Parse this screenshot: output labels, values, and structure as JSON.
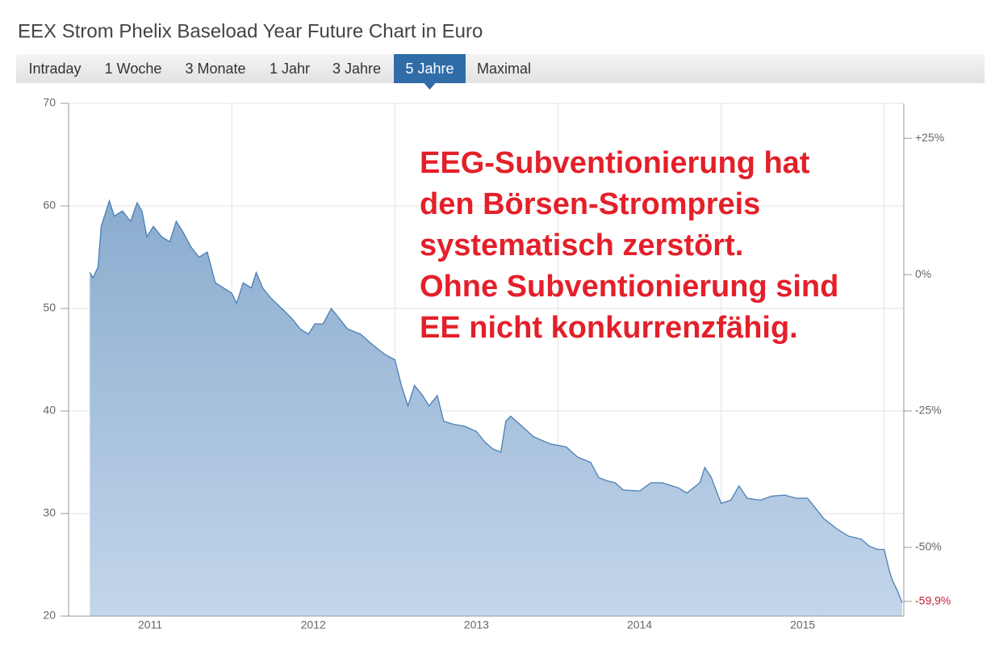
{
  "chart_data": {
    "type": "area",
    "title": "EEX Strom Phelix Baseload Year Future Chart in Euro",
    "tabs": [
      "Intraday",
      "1 Woche",
      "3 Monate",
      "1 Jahr",
      "3 Jahre",
      "5 Jahre",
      "Maximal"
    ],
    "active_tab": 5,
    "annotation": [
      "EEG-Subventionierung hat",
      "den Börsen-Strompreis",
      "systematisch zerstört.",
      "Ohne Subventionierung sind",
      "EE nicht konkurrenzfähig."
    ],
    "color": "#4a7fb5",
    "x": [
      2010.63,
      2010.65,
      2010.68,
      2010.7,
      2010.73,
      2010.75,
      2010.78,
      2010.83,
      2010.88,
      2010.92,
      2010.95,
      2010.98,
      2011.02,
      2011.07,
      2011.12,
      2011.16,
      2011.2,
      2011.25,
      2011.3,
      2011.35,
      2011.4,
      2011.45,
      2011.5,
      2011.53,
      2011.57,
      2011.62,
      2011.65,
      2011.69,
      2011.74,
      2011.82,
      2011.87,
      2011.92,
      2011.97,
      2012.01,
      2012.06,
      2012.11,
      2012.16,
      2012.21,
      2012.29,
      2012.36,
      2012.44,
      2012.5,
      2012.54,
      2012.58,
      2012.62,
      2012.67,
      2012.71,
      2012.76,
      2012.8,
      2012.86,
      2012.93,
      2013.0,
      2013.05,
      2013.1,
      2013.15,
      2013.18,
      2013.21,
      2013.28,
      2013.35,
      2013.45,
      2013.55,
      2013.62,
      2013.7,
      2013.75,
      2013.8,
      2013.85,
      2013.9,
      2014.0,
      2014.07,
      2014.14,
      2014.24,
      2014.29,
      2014.37,
      2014.4,
      2014.44,
      2014.5,
      2014.56,
      2014.61,
      2014.66,
      2014.74,
      2014.81,
      2014.89,
      2014.96,
      2015.03,
      2015.08,
      2015.13,
      2015.21,
      2015.28,
      2015.36,
      2015.41,
      2015.46,
      2015.5,
      2015.53,
      2015.55,
      2015.58,
      2015.61
    ],
    "values": [
      53.5,
      53,
      54,
      58,
      59.5,
      60.5,
      59,
      59.5,
      58.5,
      60.3,
      59.5,
      57,
      58,
      57,
      56.5,
      58.5,
      57.5,
      56,
      55,
      55.5,
      52.5,
      52,
      51.5,
      50.5,
      52.5,
      52,
      53.5,
      52,
      51,
      49.8,
      49,
      48,
      47.5,
      48.5,
      48.5,
      50,
      49,
      48,
      47.5,
      46.5,
      45.5,
      45,
      42.5,
      40.5,
      42.5,
      41.5,
      40.5,
      41.5,
      39,
      38.7,
      38.5,
      38,
      37,
      36.3,
      36,
      39,
      39.5,
      38.5,
      37.5,
      36.8,
      36.5,
      35.5,
      35,
      33.5,
      33.2,
      33,
      32.3,
      32.2,
      33,
      33,
      32.5,
      32,
      33,
      34.5,
      33.5,
      31,
      31.3,
      32.7,
      31.5,
      31.3,
      31.7,
      31.8,
      31.5,
      31.5,
      30.5,
      29.5,
      28.5,
      27.8,
      27.5,
      26.8,
      26.5,
      26.5,
      24.5,
      23.5,
      22.5,
      21.3
    ],
    "xlim": [
      2010.5,
      2015.62
    ],
    "xticks": [
      2011,
      2012,
      2013,
      2014,
      2015
    ],
    "xgrid": [
      2011.5,
      2012.5,
      2013.5,
      2014.5,
      2015.5
    ],
    "ylim": [
      20,
      70
    ],
    "yticks": [
      20,
      30,
      40,
      50,
      60,
      70
    ],
    "y2lim": [
      -62.6,
      31.4
    ],
    "y2ticks": [
      {
        "value": 25,
        "label": "+25%"
      },
      {
        "value": 0,
        "label": "0%"
      },
      {
        "value": -25,
        "label": "-25%"
      },
      {
        "value": -50,
        "label": "-50%"
      }
    ],
    "last_label": {
      "value": -59.9,
      "label": "-59,9%"
    },
    "grid": true
  }
}
